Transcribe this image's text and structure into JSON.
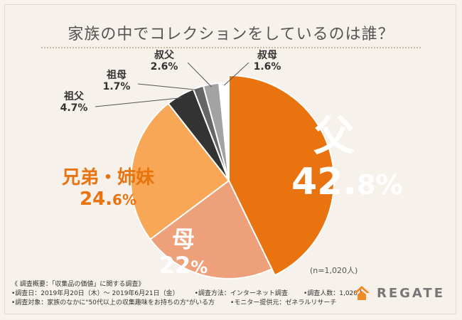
{
  "title": "家族の中でコレクションをしているのは誰？",
  "chart_data": {
    "type": "pie",
    "slices": [
      {
        "name": "父",
        "value": 42.8,
        "color": "#e8730f",
        "label": "父",
        "pct_main": "42.",
        "pct_small": "8%"
      },
      {
        "name": "母",
        "value": 22.0,
        "color": "#eda07a",
        "label": "母",
        "pct_main": "22",
        "pct_small": "%"
      },
      {
        "name": "兄弟・姉妹",
        "value": 24.6,
        "color": "#f7a755",
        "label": "兄弟・姉妹",
        "pct_main": "24.",
        "pct_small": "6%"
      },
      {
        "name": "祖父",
        "value": 4.7,
        "color": "#333333",
        "label": "祖父",
        "pct": "4.7%"
      },
      {
        "name": "祖母",
        "value": 1.7,
        "color": "#666666",
        "label": "祖母",
        "pct": "1.7%"
      },
      {
        "name": "叔父",
        "value": 2.6,
        "color": "#a3a3a3",
        "label": "叔父",
        "pct": "2.6%"
      },
      {
        "name": "叔母",
        "value": 1.6,
        "color": "#ffffff",
        "label": "叔母",
        "pct": "1.6%"
      }
    ]
  },
  "n_note": "(n=1,020人)",
  "notes": {
    "header": "《 調査概要：「収集品の価値」に関する調査》",
    "row1": [
      "•調査日：2019年月20日（木）～ 2019年6月21日（金）",
      "•調査方法：インターネット調査",
      "•調査人数：1,020人"
    ],
    "row2": [
      "•調査対象：家族のなかに\"50代以上の収集趣味をお持ちの方\"がいる方",
      "•モニター提供元：ゼネラルリサーチ"
    ]
  },
  "brand": {
    "name": "REGATE",
    "color": "#f08a24"
  }
}
